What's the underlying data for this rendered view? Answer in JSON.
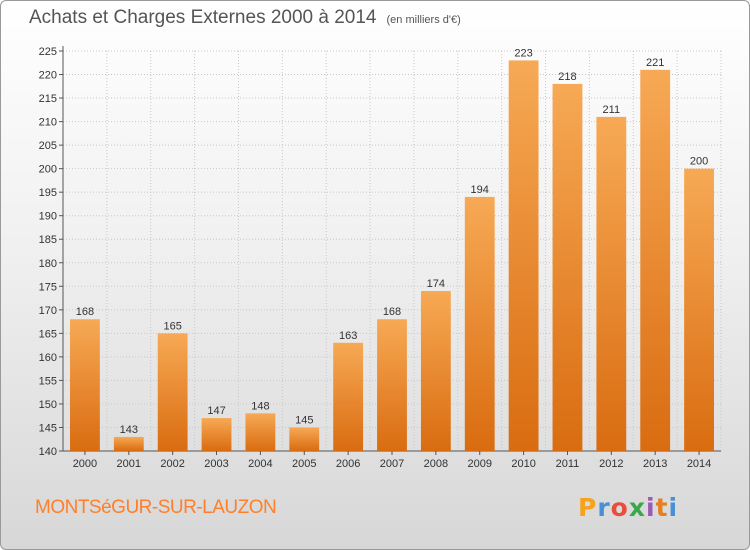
{
  "chart_data": {
    "type": "bar",
    "title": "Achats et Charges Externes 2000 à 2014",
    "subtitle": "(en milliers d'€)",
    "categories": [
      "2000",
      "2001",
      "2002",
      "2003",
      "2004",
      "2005",
      "2006",
      "2007",
      "2008",
      "2009",
      "2010",
      "2011",
      "2012",
      "2013",
      "2014"
    ],
    "values": [
      168,
      143,
      165,
      147,
      148,
      145,
      163,
      168,
      174,
      194,
      223,
      218,
      211,
      221,
      200
    ],
    "ylim": [
      140,
      225
    ],
    "yticks": [
      140,
      145,
      150,
      155,
      160,
      165,
      170,
      175,
      180,
      185,
      190,
      195,
      200,
      205,
      210,
      215,
      220,
      225
    ],
    "grid": true,
    "bar_color": "#f08a24"
  },
  "footer": {
    "commune": "MONTSéGUR-SUR-LAUZON",
    "logo_letters": [
      "P",
      "r",
      "o",
      "x",
      "i",
      "t",
      "i"
    ],
    "logo_colors": [
      "#f7a21b",
      "#4a8fd6",
      "#e94e3c",
      "#3aa84a",
      "#9b59b6",
      "#e67e22",
      "#4a8fd6"
    ]
  }
}
